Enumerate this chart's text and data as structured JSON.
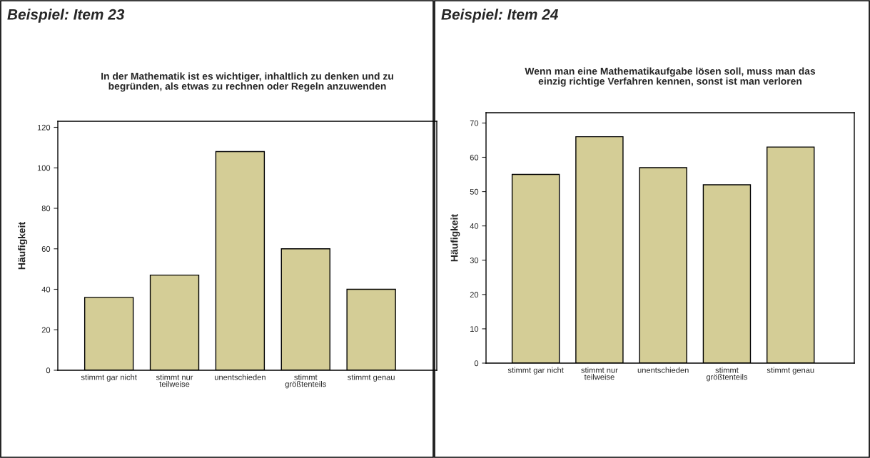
{
  "chart_data": [
    {
      "type": "bar",
      "title": "Beispiel: Item 23",
      "subtitle": "In der Mathematik ist es wichtiger, inhaltlich zu denken und zu\nbegründen, als etwas zu rechnen oder Regeln anzuwenden",
      "ylabel": "Häufigkeit",
      "categories": [
        "stimmt gar nicht",
        "stimmt nur\nteilweise",
        "unentschieden",
        "stimmt\ngrößtenteils",
        "stimmt genau"
      ],
      "values": [
        36,
        47,
        108,
        60,
        40
      ],
      "color": "#d4cd96",
      "ylim": [
        0,
        123
      ],
      "yticks": [
        0,
        20,
        40,
        60,
        80,
        100,
        120
      ],
      "grid": false
    },
    {
      "type": "bar",
      "title": "Beispiel: Item 24",
      "subtitle": "Wenn man eine Mathematikaufgabe lösen soll, muss man das\neinzig richtige Verfahren kennen, sonst ist man verloren",
      "ylabel": "Häufigkeit",
      "categories": [
        "stimmt gar nicht",
        "stimmt nur\nteilweise",
        "unentschieden",
        "stimmt\ngrößtenteils",
        "stimmt genau"
      ],
      "values": [
        55,
        66,
        57,
        52,
        63
      ],
      "color": "#d4cd96",
      "ylim": [
        0,
        73
      ],
      "yticks": [
        0,
        10,
        20,
        30,
        40,
        50,
        60,
        70
      ],
      "grid": false
    }
  ]
}
